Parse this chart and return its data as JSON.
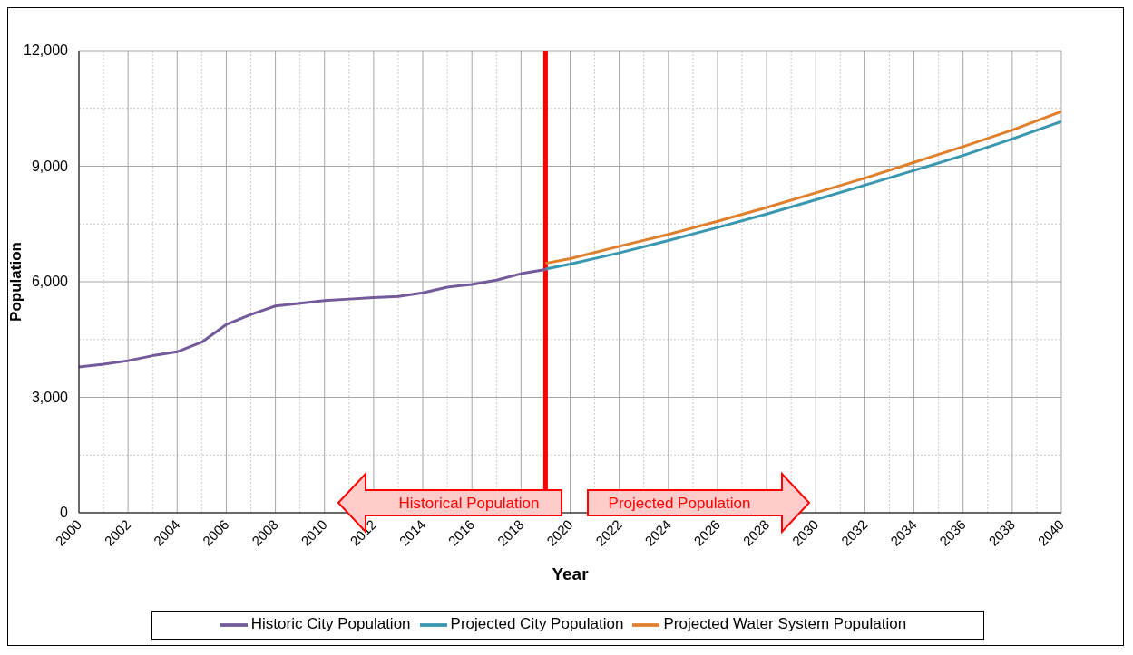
{
  "chart_data": {
    "type": "line",
    "xlabel": "Year",
    "ylabel": "Population",
    "xlim": [
      2000,
      2040
    ],
    "xticks": [
      2000,
      {
        "value": 2001,
        "label": null
      },
      2002,
      {
        "value": 2003,
        "label": null
      },
      2004,
      {
        "value": 2005,
        "label": null
      },
      2006,
      {
        "value": 2007,
        "label": null
      },
      2008,
      {
        "value": 2009,
        "label": null
      },
      2010,
      {
        "value": 2011,
        "label": null
      },
      2012,
      {
        "value": 2013,
        "label": null
      },
      2014,
      {
        "value": 2015,
        "label": null
      },
      2016,
      {
        "value": 2017,
        "label": null
      },
      2018,
      {
        "value": 2019,
        "label": null
      },
      2020,
      {
        "value": 2021,
        "label": null
      },
      2022,
      {
        "value": 2023,
        "label": null
      },
      2024,
      {
        "value": 2025,
        "label": null
      },
      2026,
      {
        "value": 2027,
        "label": null
      },
      2028,
      {
        "value": 2029,
        "label": null
      },
      2030,
      {
        "value": 2031,
        "label": null
      },
      2032,
      {
        "value": 2033,
        "label": null
      },
      2034,
      {
        "value": 2035,
        "label": null
      },
      2036,
      {
        "value": 2037,
        "label": null
      },
      2038,
      {
        "value": 2039,
        "label": null
      },
      2040
    ],
    "ylim": [
      0,
      12000
    ],
    "yticks": [
      0,
      {
        "value": 1500,
        "label": null
      },
      {
        "value": 3000,
        "label": "3,000"
      },
      {
        "value": 4500,
        "label": null
      },
      {
        "value": 6000,
        "label": "6,000"
      },
      {
        "value": 7500,
        "label": null
      },
      {
        "value": 9000,
        "label": "9,000"
      },
      {
        "value": 10500,
        "label": null
      },
      {
        "value": 12000,
        "label": "12,000"
      }
    ],
    "grid": true,
    "legend": "bottom",
    "marker": "none",
    "line_style": "solid",
    "ref_lines": [
      {
        "axis": "x",
        "value": 2019,
        "color": "#ff0000"
      }
    ],
    "annotations": [
      "Historical Population",
      "Projected Population"
    ],
    "series": [
      {
        "name": "Historic City Population",
        "color": "#735a9a",
        "x": [
          2000,
          2001,
          2002,
          2003,
          2004,
          2005,
          2006,
          2007,
          2008,
          2009,
          2010,
          2011,
          2012,
          2013,
          2014,
          2015,
          2016,
          2017,
          2018,
          2019
        ],
        "values": [
          3790,
          3860,
          3950,
          4080,
          4180,
          4430,
          4890,
          5150,
          5370,
          5440,
          5510,
          5550,
          5590,
          5620,
          5710,
          5860,
          5930,
          6040,
          6210,
          6320
        ]
      },
      {
        "name": "Projected City Population",
        "color": "#3a97b0",
        "x": [
          2019,
          2020,
          2022,
          2024,
          2026,
          2028,
          2030,
          2032,
          2034,
          2036,
          2038,
          2040
        ],
        "values": [
          6330,
          6460,
          6750,
          7070,
          7410,
          7760,
          8130,
          8510,
          8890,
          9280,
          9710,
          10160
        ]
      },
      {
        "name": "Projected Water System Population",
        "color": "#e07f2c",
        "x": [
          2019,
          2020,
          2022,
          2024,
          2026,
          2028,
          2030,
          2032,
          2034,
          2036,
          2038,
          2040
        ],
        "values": [
          6480,
          6600,
          6920,
          7230,
          7570,
          7930,
          8310,
          8690,
          9100,
          9510,
          9940,
          10420
        ]
      }
    ]
  }
}
